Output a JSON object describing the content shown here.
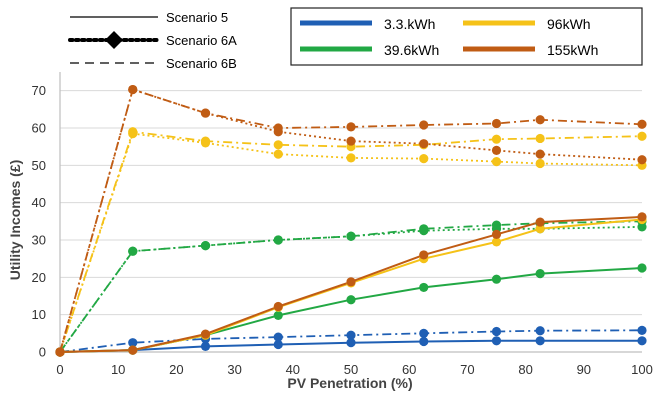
{
  "chart_data": {
    "type": "line",
    "xlabel": "PV Penetration (%)",
    "ylabel": "Utility Incomes (£)",
    "xlim": [
      0,
      100
    ],
    "ylim": [
      0,
      75
    ],
    "xticks": [
      0,
      10,
      20,
      30,
      40,
      50,
      60,
      70,
      80,
      90,
      100
    ],
    "yticks": [
      0,
      10,
      20,
      30,
      40,
      50,
      60,
      70
    ],
    "grid": "horizontal",
    "x": [
      0,
      12.5,
      25,
      37.5,
      50,
      62.5,
      75,
      82.5,
      100
    ],
    "colors": {
      "3.3.kWh": "#1f5fb4",
      "39.6kWh": "#22a844",
      "96kWh": "#f5c218",
      "155kWh": "#c05c14"
    },
    "battery_legend": [
      {
        "label": "3.3.kWh",
        "color": "#1f5fb4"
      },
      {
        "label": "96kWh",
        "color": "#f5c218"
      },
      {
        "label": "39.6kWh",
        "color": "#22a844"
      },
      {
        "label": "155kWh",
        "color": "#c05c14"
      }
    ],
    "scenario_legend": [
      {
        "label": "Scenario 5",
        "style": "solid"
      },
      {
        "label": "Scenario 6A",
        "style": "dotted"
      },
      {
        "label": "Scenario 6B",
        "style": "dashed"
      }
    ],
    "series": [
      {
        "battery": "3.3.kWh",
        "scenario": "Scenario 5",
        "style": "solid",
        "values": [
          0,
          0.5,
          1.5,
          2,
          2.5,
          2.8,
          3,
          3,
          3
        ]
      },
      {
        "battery": "3.3.kWh",
        "scenario": "Scenario 6B",
        "style": "dashdot",
        "values": [
          0,
          2.5,
          3.5,
          4,
          4.5,
          5,
          5.5,
          5.7,
          5.8
        ]
      },
      {
        "battery": "39.6kWh",
        "scenario": "Scenario 5",
        "style": "solid",
        "values": [
          0,
          0.5,
          4.5,
          9.8,
          14,
          17.3,
          19.5,
          21,
          22.5
        ]
      },
      {
        "battery": "39.6kWh",
        "scenario": "Scenario 6B",
        "style": "dashdot",
        "values": [
          0,
          27,
          28.5,
          30,
          31,
          33,
          34,
          34.5,
          35
        ]
      },
      {
        "battery": "39.6kWh",
        "scenario": "Scenario 6A",
        "style": "dotted",
        "values": [
          0,
          27,
          28.5,
          30,
          31,
          32.5,
          33,
          33,
          33.5
        ]
      },
      {
        "battery": "96kWh",
        "scenario": "Scenario 5",
        "style": "solid",
        "values": [
          0,
          0.5,
          4.5,
          12,
          18.5,
          25,
          29.5,
          33,
          35.5
        ]
      },
      {
        "battery": "96kWh",
        "scenario": "Scenario 6B",
        "style": "dashdot",
        "values": [
          0,
          59,
          56.5,
          55.5,
          55,
          55.5,
          57,
          57.2,
          57.8
        ]
      },
      {
        "battery": "96kWh",
        "scenario": "Scenario 6A",
        "style": "dotted",
        "values": [
          0,
          58.5,
          56,
          53,
          52,
          51.8,
          51,
          50.5,
          50
        ]
      },
      {
        "battery": "155kWh",
        "scenario": "Scenario 5",
        "style": "solid",
        "values": [
          0,
          0.5,
          4.8,
          12.2,
          18.8,
          26,
          31.5,
          34.8,
          36.2
        ]
      },
      {
        "battery": "155kWh",
        "scenario": "Scenario 6B",
        "style": "dashdot",
        "values": [
          0,
          70.3,
          64,
          60,
          60.3,
          60.8,
          61.2,
          62.2,
          61
        ]
      },
      {
        "battery": "155kWh",
        "scenario": "Scenario 6A",
        "style": "dotted",
        "values": [
          0,
          70.3,
          64,
          59,
          56.5,
          55.8,
          54,
          53,
          51.5
        ]
      }
    ]
  }
}
